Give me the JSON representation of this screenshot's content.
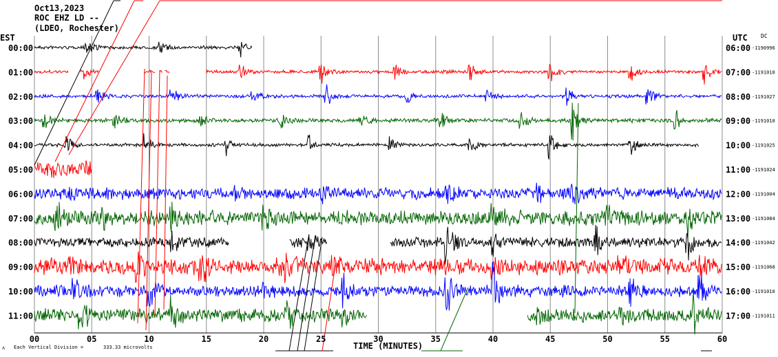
{
  "header": {
    "date": "Oct13,2023",
    "station": "ROC EHZ LD --",
    "network": "(LDEO, Rochester)",
    "left_tz": "EST",
    "right_tz": "UTC",
    "dc_label": "DC"
  },
  "footer": {
    "scale_note": "Each Vertical Division =",
    "scale_value": "333.33 microvolts",
    "corner_mark": "ᴧ"
  },
  "chart_data": {
    "type": "line",
    "title": "",
    "xlabel": "TIME (MINUTES)",
    "ylabel": "",
    "xlim": [
      0,
      60
    ],
    "x_ticks": [
      "00",
      "05",
      "10",
      "15",
      "20",
      "25",
      "30",
      "35",
      "40",
      "45",
      "50",
      "55",
      "60"
    ],
    "grid": true,
    "trace_colors": [
      "#000000",
      "#ff0000",
      "#0000ff",
      "#006400"
    ],
    "rows": [
      {
        "local": "00:00",
        "utc": "06:00",
        "dc": "-1190996",
        "color": "#000000",
        "start": 0,
        "end": 19,
        "amp": 2,
        "events": [
          [
            4.6,
            9
          ],
          [
            11,
            10
          ],
          [
            18,
            9
          ]
        ]
      },
      {
        "local": "01:00",
        "utc": "07:00",
        "dc": "-1191010",
        "color": "#ff0000",
        "start": 0,
        "end": 60,
        "amp": 2,
        "events": [
          [
            4.5,
            10
          ],
          [
            18,
            11
          ],
          [
            25,
            12
          ],
          [
            31.5,
            10
          ],
          [
            38,
            10
          ],
          [
            45,
            12
          ],
          [
            52,
            10
          ],
          [
            58.5,
            12
          ]
        ],
        "gaps": [
          [
            3,
            4
          ],
          [
            5.6,
            9.5
          ],
          [
            10.5,
            10.9
          ],
          [
            11.2,
            11.4
          ],
          [
            11.8,
            15
          ]
        ]
      },
      {
        "local": "02:00",
        "utc": "08:00",
        "dc": "-1191027",
        "color": "#0000ff",
        "start": 0,
        "end": 60,
        "amp": 2,
        "events": [
          [
            5.5,
            12
          ],
          [
            12,
            12
          ],
          [
            19,
            10
          ],
          [
            25.5,
            12
          ],
          [
            32.5,
            11
          ],
          [
            39.5,
            12
          ],
          [
            46.5,
            14
          ],
          [
            53.5,
            12
          ]
        ]
      },
      {
        "local": "03:00",
        "utc": "09:00",
        "dc": "-1191010",
        "color": "#006400",
        "start": 0,
        "end": 60,
        "amp": 2.5,
        "events": [
          [
            0.8,
            12
          ],
          [
            7,
            13
          ],
          [
            14.5,
            11
          ],
          [
            21.5,
            12
          ],
          [
            28.5,
            11
          ],
          [
            35.5,
            12
          ],
          [
            42.5,
            12
          ],
          [
            47,
            25
          ],
          [
            56,
            12
          ]
        ]
      },
      {
        "local": "04:00",
        "utc": "10:00",
        "dc": "-1191025",
        "color": "#000000",
        "start": 0,
        "end": 58,
        "amp": 2,
        "events": [
          [
            2.8,
            11
          ],
          [
            9.7,
            12
          ],
          [
            16.8,
            10
          ],
          [
            24,
            11
          ],
          [
            31,
            11
          ],
          [
            38,
            11
          ],
          [
            45,
            14
          ],
          [
            52,
            12
          ]
        ]
      },
      {
        "local": "05:00",
        "utc": "11:00",
        "dc": "-1191024",
        "color": "#ff0000",
        "start": 0,
        "end": 5,
        "amp": 10,
        "events": []
      },
      {
        "local": "06:00",
        "utc": "12:00",
        "dc": "-1191004",
        "color": "#0000ff",
        "start": 0,
        "end": 60,
        "amp": 7,
        "events": [
          [
            3,
            12
          ],
          [
            17.5,
            12
          ],
          [
            25,
            14
          ],
          [
            36,
            12
          ],
          [
            44,
            14
          ],
          [
            47,
            12
          ]
        ]
      },
      {
        "local": "07:00",
        "utc": "13:00",
        "dc": "-1191084",
        "color": "#006400",
        "start": 0,
        "end": 60,
        "amp": 9,
        "events": [
          [
            2,
            16
          ],
          [
            6,
            15
          ],
          [
            12,
            20
          ],
          [
            20,
            12
          ],
          [
            40,
            14
          ],
          [
            50,
            12
          ],
          [
            57,
            18
          ]
        ]
      },
      {
        "local": "08:00",
        "utc": "14:00",
        "dc": "-1191042",
        "color": "#000000",
        "start": 0,
        "end": 60,
        "amp": 6,
        "events": [
          [
            12,
            12
          ],
          [
            24,
            10
          ],
          [
            36,
            28
          ],
          [
            40,
            14
          ],
          [
            49,
            18
          ],
          [
            57,
            18
          ]
        ],
        "gaps": [
          [
            17,
            22.2
          ],
          [
            25.5,
            31
          ]
        ]
      },
      {
        "local": "09:00",
        "utc": "15:00",
        "dc": "-1191068",
        "color": "#ff0000",
        "start": 0,
        "end": 60,
        "amp": 10,
        "events": [
          [
            3,
            14
          ],
          [
            9,
            24
          ],
          [
            14.5,
            22
          ],
          [
            22,
            20
          ],
          [
            26,
            16
          ],
          [
            40,
            14
          ],
          [
            51,
            12
          ],
          [
            58,
            14
          ]
        ]
      },
      {
        "local": "10:00",
        "utc": "16:00",
        "dc": "-1191010",
        "color": "#0000ff",
        "start": 0,
        "end": 60,
        "amp": 7,
        "events": [
          [
            3.5,
            14
          ],
          [
            10,
            16
          ],
          [
            20,
            12
          ],
          [
            27,
            14
          ],
          [
            36,
            30
          ],
          [
            40,
            30
          ],
          [
            52,
            14
          ],
          [
            58,
            22
          ]
        ]
      },
      {
        "local": "11:00",
        "utc": "17:00",
        "dc": "-1191011",
        "color": "#006400",
        "start": 0,
        "end": 60,
        "amp": 8,
        "events": [
          [
            4,
            24
          ],
          [
            12,
            20
          ],
          [
            22,
            18
          ],
          [
            27,
            12
          ],
          [
            36,
            22
          ],
          [
            44,
            14
          ],
          [
            51,
            14
          ],
          [
            57.5,
            26
          ]
        ],
        "gaps": [
          [
            29,
            43
          ]
        ]
      }
    ]
  }
}
